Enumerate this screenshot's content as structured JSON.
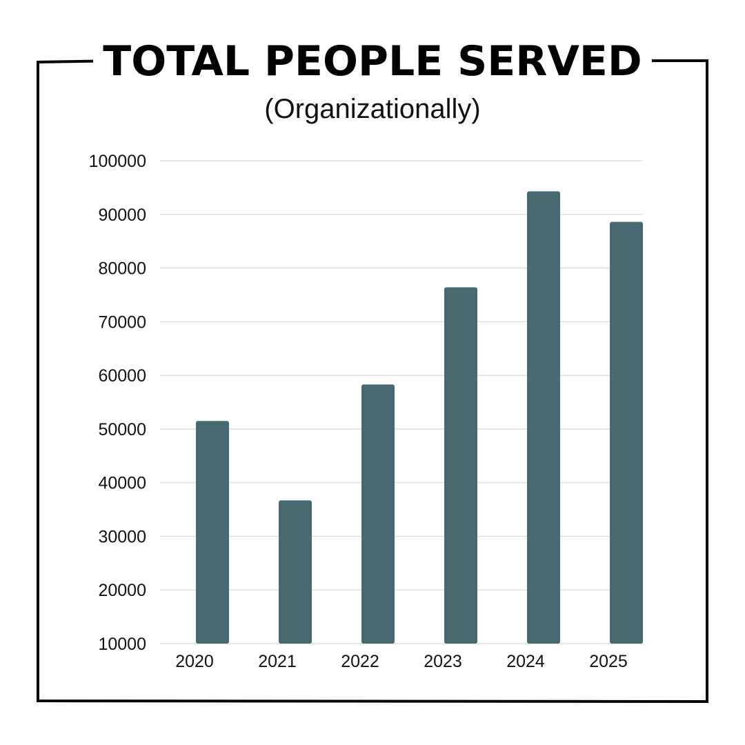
{
  "header": {
    "title": "TOTAL PEOPLE SERVED",
    "subtitle": "(Organizationally)"
  },
  "colors": {
    "bar": "#466a70",
    "grid": "#d9d9d9",
    "frame": "#000000"
  },
  "chart_data": {
    "type": "bar",
    "title": "TOTAL PEOPLE SERVED",
    "subtitle": "(Organizationally)",
    "xlabel": "",
    "ylabel": "",
    "categories": [
      "2020",
      "2021",
      "2022",
      "2023",
      "2024",
      "2025"
    ],
    "values": [
      51500,
      36700,
      58300,
      76400,
      94300,
      88600
    ],
    "ylim": [
      10000,
      100000
    ],
    "yticks": [
      10000,
      20000,
      30000,
      40000,
      50000,
      60000,
      70000,
      80000,
      90000,
      100000
    ],
    "grid": true,
    "legend": "none"
  }
}
